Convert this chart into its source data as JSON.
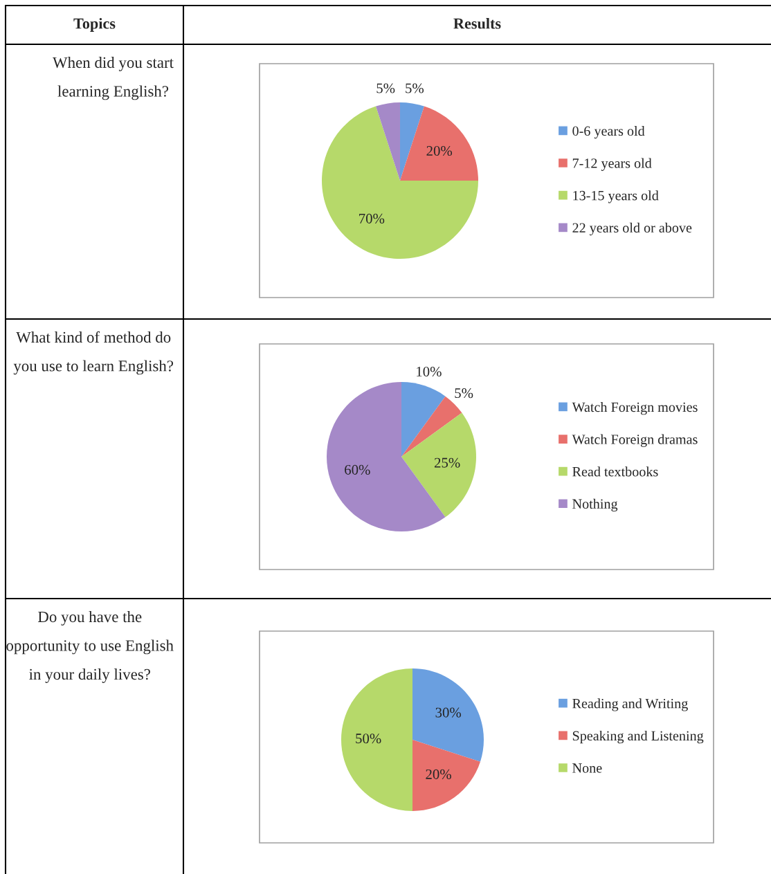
{
  "chart_data": [
    {
      "type": "pie",
      "title": "When did you start learning English?",
      "annotations": [
        "Topics",
        "Results"
      ],
      "categories": [
        "0-6 years old",
        "7-12 years old",
        "13-15 years old",
        "22 years old or above"
      ],
      "values": [
        5,
        20,
        70,
        5
      ],
      "value_labels": [
        "5%",
        "20%",
        "70%",
        "5%"
      ],
      "colors": [
        "#6a9fe0",
        "#e8706c",
        "#b6d96a",
        "#a589c8"
      ],
      "legend": "right"
    },
    {
      "type": "pie",
      "title": "What kind of method do you use to learn English?",
      "categories": [
        "Watch Foreign movies",
        "Watch Foreign dramas",
        "Read textbooks",
        "Nothing"
      ],
      "values": [
        10,
        5,
        25,
        60
      ],
      "value_labels": [
        "10%",
        "5%",
        "25%",
        "60%"
      ],
      "colors": [
        "#6a9fe0",
        "#e8706c",
        "#b6d96a",
        "#a589c8"
      ],
      "legend": "right"
    },
    {
      "type": "pie",
      "title": "Do you have the opportunity to use English in your daily lives?",
      "categories": [
        "Reading and Writing",
        "Speaking and Listening",
        "None"
      ],
      "values": [
        30,
        20,
        50
      ],
      "value_labels": [
        "30%",
        "20%",
        "50%"
      ],
      "colors": [
        "#6a9fe0",
        "#e8706c",
        "#b6d96a"
      ],
      "legend": "right"
    }
  ]
}
